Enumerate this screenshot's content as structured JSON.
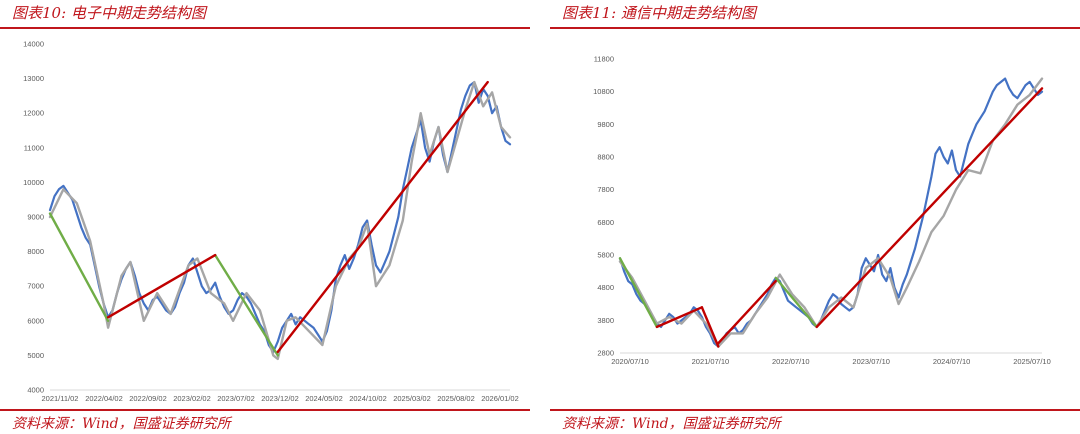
{
  "panels": [
    {
      "title": "图表10:  电子中期走势结构图",
      "source": "资料来源：Wind，国盛证券研究所"
    },
    {
      "title": "图表11:  通信中期走势结构图",
      "source": "资料来源：Wind，国盛证券研究所"
    }
  ],
  "chart_data": [
    {
      "type": "line",
      "title": "图表10:  电子中期走势结构图",
      "xlabel": "",
      "ylabel": "",
      "x_ticks": [
        "2021/11/02",
        "2022/04/02",
        "2022/09/02",
        "2023/02/02",
        "2023/07/02",
        "2023/12/02",
        "2024/05/02",
        "2024/10/02",
        "2025/03/02",
        "2025/08/02",
        "2026/01/02"
      ],
      "y_ticks": [
        4000,
        5000,
        6000,
        7000,
        8000,
        9000,
        10000,
        11000,
        12000,
        13000,
        14000
      ],
      "ylim": [
        4000,
        14000
      ],
      "grid": false,
      "series": [
        {
          "color": "#4472c4",
          "x": [
            0,
            1,
            2,
            3,
            4,
            5,
            6,
            7,
            8,
            9,
            10,
            11,
            12,
            13,
            14,
            15,
            16,
            17,
            18,
            19,
            20,
            21,
            22,
            23,
            24,
            25,
            26,
            27,
            28,
            29,
            30,
            31,
            32,
            33,
            34,
            35,
            36,
            37,
            38,
            39,
            40,
            41,
            42,
            43,
            44,
            45,
            46,
            47,
            48,
            49,
            50,
            51,
            52,
            53,
            54,
            55,
            56,
            57,
            58,
            59,
            60,
            61,
            62,
            63,
            64,
            65,
            66,
            67,
            68,
            69,
            70,
            71,
            72,
            73,
            74,
            75,
            76,
            77,
            78,
            79,
            80,
            81,
            82,
            83,
            84,
            85,
            86,
            87,
            88,
            89,
            90,
            91,
            92,
            93,
            94,
            95,
            96,
            97,
            98,
            99,
            100,
            101,
            102,
            103
          ],
          "values": [
            9200,
            9600,
            9800,
            9900,
            9700,
            9500,
            9100,
            8700,
            8400,
            8200,
            7600,
            7000,
            6500,
            6100,
            6300,
            6800,
            7200,
            7500,
            7700,
            7300,
            6800,
            6500,
            6300,
            6600,
            6700,
            6500,
            6300,
            6200,
            6400,
            6800,
            7100,
            7600,
            7800,
            7400,
            7000,
            6800,
            6900,
            7100,
            6700,
            6400,
            6200,
            6300,
            6600,
            6800,
            6700,
            6500,
            6200,
            5900,
            5700,
            5300,
            5100,
            5400,
            5800,
            6000,
            6200,
            5900,
            6100,
            6000,
            5900,
            5800,
            5600,
            5400,
            5700,
            6300,
            7200,
            7600,
            7900,
            7500,
            7800,
            8200,
            8700,
            8900,
            8200,
            7600,
            7400,
            7700,
            8000,
            8500,
            9000,
            9800,
            10400,
            11000,
            11400,
            11800,
            11000,
            10600,
            11200,
            11600,
            10800,
            10300,
            10900,
            11500,
            12100,
            12500,
            12800,
            12900,
            12300,
            12700,
            12500,
            12000,
            12200,
            11600,
            11200,
            11100
          ]
        },
        {
          "color": "#a6a6a6",
          "x": [
            0,
            3,
            6,
            9,
            12,
            13,
            16,
            18,
            21,
            24,
            27,
            31,
            33,
            36,
            39,
            41,
            44,
            47,
            50,
            51,
            53,
            55,
            58,
            61,
            64,
            67,
            69,
            71,
            73,
            76,
            79,
            81,
            83,
            85,
            87,
            89,
            91,
            93,
            95,
            97,
            99,
            101,
            103
          ],
          "values": [
            9000,
            9800,
            9400,
            8300,
            6500,
            5800,
            7300,
            7700,
            6000,
            6800,
            6200,
            7600,
            7800,
            6800,
            6500,
            6000,
            6800,
            6300,
            5000,
            4900,
            6000,
            6100,
            5700,
            5300,
            7000,
            7800,
            8100,
            8800,
            7000,
            7600,
            8900,
            10600,
            12000,
            10800,
            11600,
            10300,
            11200,
            12100,
            12900,
            12200,
            12600,
            11600,
            11300
          ]
        },
        {
          "color": "#70ad47",
          "x": [
            0,
            13
          ],
          "values": [
            9100,
            6000
          ]
        },
        {
          "color": "#70ad47",
          "x": [
            37,
            51
          ],
          "values": [
            7900,
            5000
          ]
        },
        {
          "color": "#c00000",
          "x": [
            13,
            37
          ],
          "values": [
            6100,
            7900
          ]
        },
        {
          "color": "#c00000",
          "x": [
            51,
            98
          ],
          "values": [
            5100,
            12900
          ]
        }
      ]
    },
    {
      "type": "line",
      "title": "图表11:  通信中期走势结构图",
      "xlabel": "",
      "ylabel": "",
      "x_ticks": [
        "2020/07/10",
        "2021/07/10",
        "2022/07/10",
        "2023/07/10",
        "2024/07/10",
        "2025/07/10"
      ],
      "y_ticks": [
        2800,
        3800,
        4800,
        5800,
        6800,
        7800,
        8800,
        9800,
        10800,
        11800
      ],
      "ylim": [
        2800,
        11800
      ],
      "grid": false,
      "series": [
        {
          "color": "#4472c4",
          "x": [
            0,
            1,
            2,
            3,
            4,
            5,
            6,
            7,
            8,
            9,
            10,
            11,
            12,
            13,
            14,
            15,
            16,
            17,
            18,
            19,
            20,
            21,
            22,
            23,
            24,
            25,
            26,
            27,
            28,
            29,
            30,
            31,
            32,
            33,
            34,
            35,
            36,
            37,
            38,
            39,
            40,
            41,
            42,
            43,
            44,
            45,
            46,
            47,
            48,
            49,
            50,
            51,
            52,
            53,
            54,
            55,
            56,
            57,
            58,
            59,
            60,
            61,
            62,
            63,
            64,
            65,
            66,
            67,
            68,
            69,
            70,
            71,
            72,
            73,
            74,
            75,
            76,
            77,
            78,
            79,
            80,
            81,
            82,
            83,
            84,
            85,
            86,
            87,
            88,
            89,
            90,
            91,
            92,
            93,
            94,
            95,
            96,
            97,
            98,
            99,
            100,
            101,
            102,
            103
          ],
          "values": [
            5700,
            5300,
            5000,
            4900,
            4600,
            4400,
            4300,
            4100,
            3900,
            3700,
            3600,
            3800,
            4000,
            3900,
            3700,
            3800,
            3900,
            4000,
            4200,
            4100,
            3900,
            3600,
            3400,
            3100,
            3000,
            3200,
            3400,
            3500,
            3600,
            3400,
            3500,
            3700,
            3800,
            4000,
            4200,
            4400,
            4600,
            4900,
            5100,
            5000,
            4700,
            4400,
            4300,
            4200,
            4100,
            4000,
            3900,
            3700,
            3600,
            3800,
            4100,
            4400,
            4600,
            4500,
            4300,
            4200,
            4100,
            4200,
            4600,
            5400,
            5700,
            5500,
            5300,
            5800,
            5200,
            5000,
            5400,
            4800,
            4500,
            4900,
            5200,
            5600,
            6000,
            6500,
            7000,
            7600,
            8200,
            8900,
            9100,
            8800,
            8600,
            9000,
            8400,
            8200,
            8700,
            9200,
            9500,
            9800,
            10000,
            10200,
            10500,
            10800,
            11000,
            11100,
            11200,
            10900,
            10700,
            10600,
            10800,
            11000,
            11100,
            10900,
            10700,
            10800
          ]
        },
        {
          "color": "#a6a6a6",
          "x": [
            0,
            3,
            6,
            9,
            12,
            15,
            18,
            21,
            24,
            27,
            30,
            33,
            36,
            39,
            42,
            45,
            48,
            51,
            54,
            57,
            60,
            63,
            66,
            68,
            70,
            73,
            76,
            79,
            82,
            85,
            88,
            91,
            94,
            97,
            100,
            103
          ],
          "values": [
            5600,
            5100,
            4400,
            3700,
            3900,
            3700,
            4100,
            3700,
            3000,
            3400,
            3400,
            4000,
            4500,
            5200,
            4600,
            4200,
            3600,
            4200,
            4500,
            4200,
            5400,
            5700,
            5100,
            4300,
            4800,
            5600,
            6500,
            7000,
            7800,
            8400,
            8300,
            9300,
            9800,
            10400,
            10700,
            11200
          ]
        },
        {
          "color": "#70ad47",
          "x": [
            0,
            9
          ],
          "values": [
            5700,
            3600
          ]
        },
        {
          "color": "#70ad47",
          "x": [
            38,
            48
          ],
          "values": [
            5100,
            3600
          ]
        },
        {
          "color": "#c00000",
          "x": [
            9,
            20
          ],
          "values": [
            3600,
            4200
          ]
        },
        {
          "color": "#c00000",
          "x": [
            20,
            24
          ],
          "values": [
            4200,
            3000
          ]
        },
        {
          "color": "#c00000",
          "x": [
            24,
            38
          ],
          "values": [
            3100,
            5000
          ]
        },
        {
          "color": "#c00000",
          "x": [
            48,
            103
          ],
          "values": [
            3600,
            10900
          ]
        }
      ]
    }
  ]
}
